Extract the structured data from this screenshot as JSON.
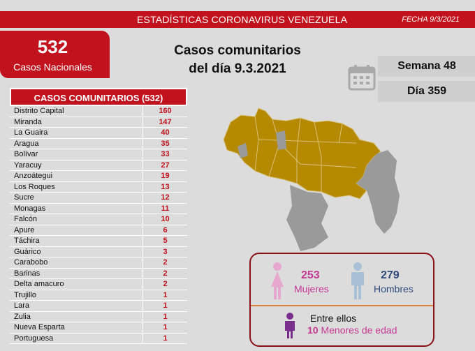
{
  "header": {
    "title": "ESTADÍSTICAS CORONAVIRUS VENEZUELA",
    "date": "FECHA 9/3/2021"
  },
  "national": {
    "count": "532",
    "label": "Casos Nacionales"
  },
  "main_title": {
    "line1": "Casos comunitarios",
    "line2": "del día 9.3.2021"
  },
  "icons": {
    "calendar": "calendar-icon",
    "woman": "woman-icon",
    "man": "man-icon",
    "child": "child-icon"
  },
  "week": {
    "label": "Semana 48"
  },
  "day": {
    "label": "Día 359"
  },
  "table": {
    "header": "CASOS COMUNITARIOS (532)",
    "rows": [
      {
        "name": "Distrito Capital",
        "value": "160"
      },
      {
        "name": "Miranda",
        "value": "147"
      },
      {
        "name": "La Guaira",
        "value": "40"
      },
      {
        "name": "Aragua",
        "value": "35"
      },
      {
        "name": "Bolívar",
        "value": "33"
      },
      {
        "name": "Yaracuy",
        "value": "27"
      },
      {
        "name": "Anzoátegui",
        "value": "19"
      },
      {
        "name": "Los Roques",
        "value": "13"
      },
      {
        "name": "Sucre",
        "value": "12"
      },
      {
        "name": "Monagas",
        "value": "11"
      },
      {
        "name": "Falcón",
        "value": "10"
      },
      {
        "name": "Apure",
        "value": "6"
      },
      {
        "name": "Táchira",
        "value": "5"
      },
      {
        "name": "Guárico",
        "value": "3"
      },
      {
        "name": "Carabobo",
        "value": "2"
      },
      {
        "name": "Barinas",
        "value": "2"
      },
      {
        "name": "Delta amacuro",
        "value": "2"
      },
      {
        "name": "Trujillo",
        "value": "1"
      },
      {
        "name": "Lara",
        "value": "1"
      },
      {
        "name": "Zulia",
        "value": "1"
      },
      {
        "name": "Nueva Esparta",
        "value": "1"
      },
      {
        "name": "Portuguesa",
        "value": "1"
      }
    ]
  },
  "gender": {
    "women": {
      "count": "253",
      "label": "Mujeres"
    },
    "men": {
      "count": "279",
      "label": "Hombres"
    },
    "among": "Entre ellos",
    "minors_count": "10",
    "minors_label": "Menores de edad"
  },
  "colors": {
    "accent": "#c1121d",
    "map_affected": "#b58900",
    "map_unaffected": "#9a9a9a",
    "women": "#c43895",
    "men": "#2e4a7a"
  }
}
